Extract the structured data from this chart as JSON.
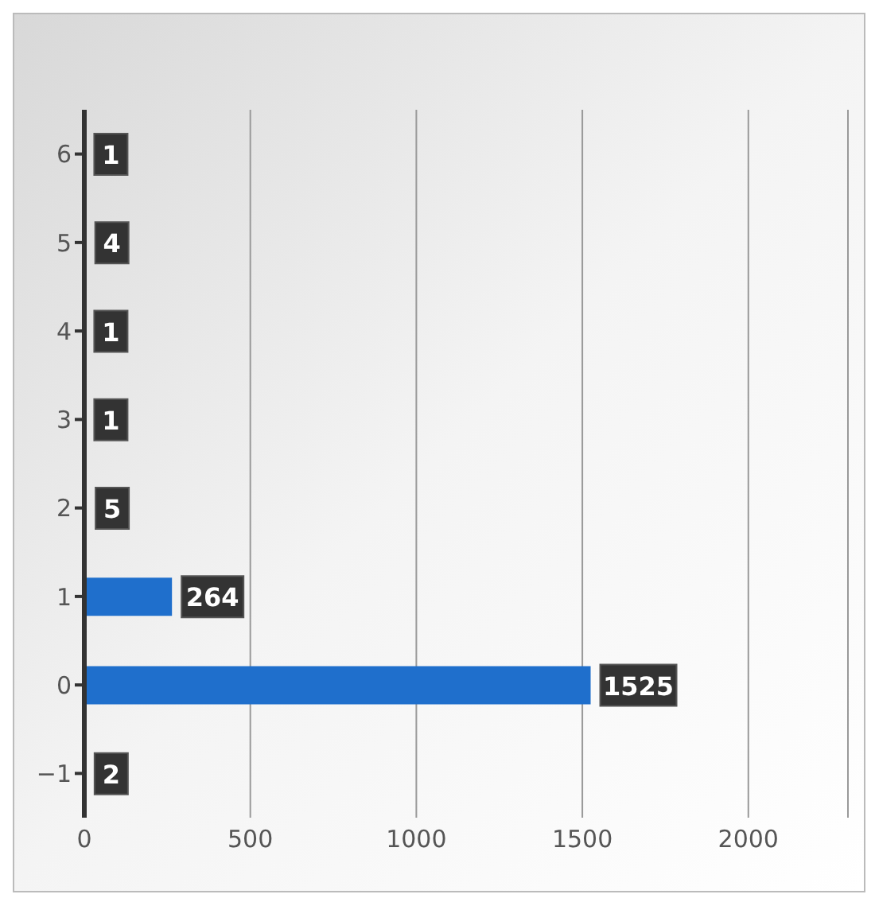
{
  "chart_data": {
    "type": "bar",
    "orientation": "horizontal",
    "categories": [
      "6",
      "5",
      "4",
      "3",
      "2",
      "1",
      "0",
      "−1"
    ],
    "values": [
      1,
      4,
      1,
      1,
      5,
      264,
      1525,
      2
    ],
    "color": "#1f6fcc",
    "xlim": [
      0,
      2300
    ],
    "xticks": [
      0,
      500,
      1000,
      1500,
      2000
    ],
    "grid": "x",
    "data_labels": true
  }
}
